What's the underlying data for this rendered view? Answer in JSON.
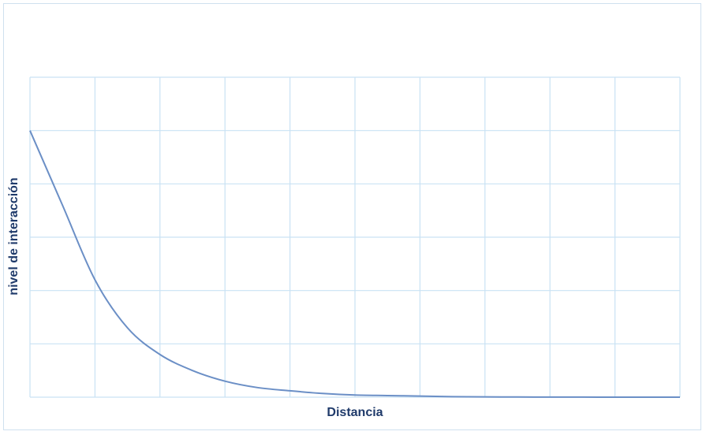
{
  "chart_data": {
    "type": "line",
    "title": "",
    "xlabel": "Distancia",
    "ylabel": "nivel de interacción",
    "xlim": [
      0,
      10
    ],
    "ylim": [
      0,
      6
    ],
    "grid": true,
    "legend": "none",
    "colors": {
      "line": "#6b8fc6",
      "grid": "#c9e2f4",
      "axis_title": "#1f3a6a",
      "frame": "#cfe0ef"
    },
    "series": [
      {
        "x": [
          0,
          0.5,
          1,
          1.5,
          2,
          2.5,
          3,
          3.5,
          4,
          4.5,
          5,
          5.5,
          6,
          6.5,
          7,
          7.5,
          8,
          8.5,
          9,
          9.5,
          10
        ],
        "values": [
          5.0,
          3.6,
          2.2,
          1.3,
          0.8,
          0.5,
          0.3,
          0.18,
          0.12,
          0.07,
          0.04,
          0.03,
          0.02,
          0.01,
          0.005,
          0.003,
          0.002,
          0.001,
          0.0,
          0.0,
          0.0
        ]
      }
    ]
  }
}
